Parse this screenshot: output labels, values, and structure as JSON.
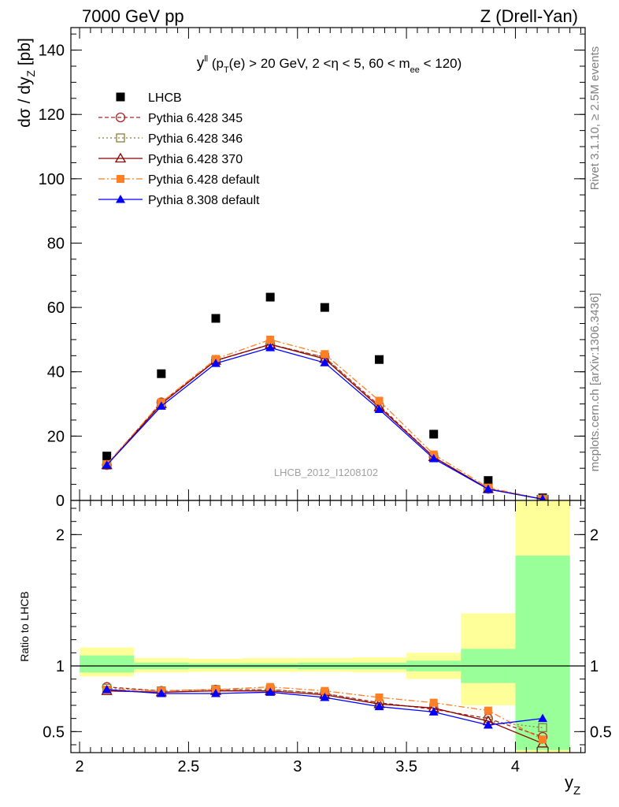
{
  "header": {
    "left": "7000 GeV pp",
    "right": "Z (Drell-Yan)"
  },
  "side_labels": {
    "rivet": "Rivet 3.1.10, ≥ 2.5M events",
    "mcplots": "mcplots.cern.ch [arXiv:1306.3436]"
  },
  "colors": {
    "data": "#000000",
    "p345": "#b22222",
    "p346": "#8b7d3a",
    "p370": "#8b0000",
    "pdef": "#ff7f24",
    "p8": "#0000ff",
    "band_inner": "#99ff99",
    "band_outer": "#ffff99"
  },
  "chart_data": [
    {
      "type": "scatter",
      "panel": "main",
      "title_parts": {
        "y": "y",
        "ll": "ll",
        "p": " (p",
        "t": "T",
        "rest": "(e) > 20 GeV, 2 <η < 5, 60 < m",
        "ee": "ee",
        "end": " < 120)"
      },
      "watermark": "LHCB_2012_I1208102",
      "ylabel": {
        "a": "dσ / dy",
        "b": "Z",
        "c": " [pb]"
      },
      "ylim": [
        0,
        147
      ],
      "y_ticks": [
        "0",
        "20",
        "40",
        "60",
        "80",
        "100",
        "120",
        "140"
      ],
      "x": [
        2.125,
        2.375,
        2.625,
        2.875,
        3.125,
        3.375,
        3.625,
        3.875,
        4.125
      ],
      "legend_position": "top-left",
      "series": [
        {
          "name": "LHCB",
          "key": "data",
          "values": [
            13.8,
            39.4,
            56.6,
            63.2,
            60.0,
            43.8,
            20.6,
            6.2,
            0.8
          ]
        },
        {
          "name": "Pythia 6.428 345",
          "key": "p345",
          "values": [
            11.0,
            30.5,
            43.5,
            48.5,
            44.5,
            29.5,
            13.5,
            3.6,
            0.4
          ]
        },
        {
          "name": "Pythia 6.428 346",
          "key": "p346",
          "values": [
            11.0,
            30.0,
            43.5,
            48.5,
            44.5,
            29.0,
            13.5,
            3.6,
            0.4
          ]
        },
        {
          "name": "Pythia 6.428 370",
          "key": "p370",
          "values": [
            11.0,
            30.0,
            43.5,
            48.5,
            44.0,
            29.0,
            13.5,
            3.6,
            0.4
          ]
        },
        {
          "name": "Pythia 6.428 default",
          "key": "pdef",
          "values": [
            11.3,
            30.5,
            44.0,
            50.0,
            45.5,
            31.0,
            14.3,
            4.0,
            0.4
          ]
        },
        {
          "name": "Pythia 8.308 default",
          "key": "p8",
          "values": [
            11.0,
            29.3,
            42.6,
            47.5,
            42.8,
            28.3,
            13.0,
            3.5,
            0.4
          ]
        }
      ]
    },
    {
      "type": "line",
      "panel": "ratio",
      "ylabel": "Ratio to LHCB",
      "xlabel": {
        "a": "y",
        "b": "Z"
      },
      "xlim": [
        1.96,
        4.32
      ],
      "ylim": [
        0.34,
        2.26
      ],
      "x_ticks": [
        "2",
        "2.5",
        "3",
        "3.5",
        "4"
      ],
      "y_ticks": [
        "0.5",
        "1",
        "2"
      ],
      "x": [
        2.125,
        2.375,
        2.625,
        2.875,
        3.125,
        3.375,
        3.625,
        3.875,
        4.125
      ],
      "bands": {
        "edges": [
          2.0,
          2.25,
          2.5,
          2.75,
          3.0,
          3.25,
          3.5,
          3.75,
          4.0,
          4.25
        ],
        "inner": [
          [
            0.95,
            1.08
          ],
          [
            0.975,
            1.025
          ],
          [
            0.98,
            1.02
          ],
          [
            0.98,
            1.02
          ],
          [
            0.975,
            1.025
          ],
          [
            0.975,
            1.025
          ],
          [
            0.96,
            1.04
          ],
          [
            0.87,
            1.13
          ],
          [
            0.36,
            1.84
          ]
        ],
        "outer": [
          [
            0.92,
            1.14
          ],
          [
            0.95,
            1.06
          ],
          [
            0.955,
            1.055
          ],
          [
            0.955,
            1.06
          ],
          [
            0.955,
            1.06
          ],
          [
            0.95,
            1.065
          ],
          [
            0.9,
            1.1
          ],
          [
            0.7,
            1.4
          ],
          [
            0.3,
            2.3
          ]
        ]
      },
      "series": [
        {
          "name": "Pythia 6.428 345",
          "key": "p345",
          "values": [
            0.84,
            0.81,
            0.82,
            0.82,
            0.79,
            0.72,
            0.67,
            0.6,
            0.46
          ]
        },
        {
          "name": "Pythia 6.428 346",
          "key": "p346",
          "values": [
            0.83,
            0.81,
            0.82,
            0.82,
            0.79,
            0.71,
            0.68,
            0.58,
            0.53
          ]
        },
        {
          "name": "Pythia 6.428 370",
          "key": "p370",
          "values": [
            0.81,
            0.8,
            0.81,
            0.81,
            0.78,
            0.71,
            0.68,
            0.58,
            0.41
          ]
        },
        {
          "name": "Pythia 6.428 default",
          "key": "pdef",
          "values": [
            0.82,
            0.81,
            0.82,
            0.84,
            0.81,
            0.76,
            0.72,
            0.66,
            0.44
          ]
        },
        {
          "name": "Pythia 8.308 default",
          "key": "p8",
          "values": [
            0.82,
            0.79,
            0.79,
            0.8,
            0.76,
            0.69,
            0.65,
            0.55,
            0.6
          ]
        }
      ]
    }
  ]
}
